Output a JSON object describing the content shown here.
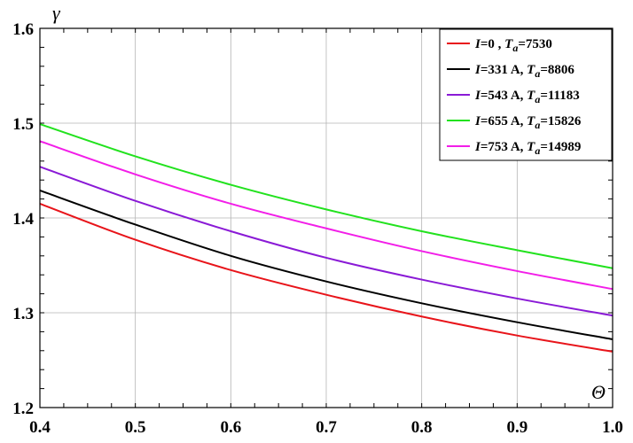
{
  "chart_data": {
    "type": "line",
    "title": "",
    "xlabel": "Θ",
    "ylabel": "γ",
    "xlim": [
      0.4,
      1.0
    ],
    "ylim": [
      1.2,
      1.6
    ],
    "grid": true,
    "legend_position": "top-right",
    "xticks": [
      "0.4",
      "0.5",
      "0.6",
      "0.7",
      "0.8",
      "0.9",
      "1.0"
    ],
    "yticks": [
      "1.2",
      "1.3",
      "1.4",
      "1.5",
      "1.6"
    ],
    "x": [
      0.4,
      0.5,
      0.6,
      0.7,
      0.8,
      0.9,
      1.0
    ],
    "series": [
      {
        "legend": {
          "I": "0 ,",
          "Ta": "7530"
        },
        "color": "#e8141a",
        "values": [
          1.415,
          1.377,
          1.345,
          1.319,
          1.296,
          1.276,
          1.259
        ]
      },
      {
        "legend": {
          "I": "331 A,",
          "Ta": "8806"
        },
        "color": "#000000",
        "values": [
          1.429,
          1.393,
          1.36,
          1.333,
          1.31,
          1.29,
          1.272
        ]
      },
      {
        "legend": {
          "I": "543 A,",
          "Ta": "11183"
        },
        "color": "#8a1ad6",
        "values": [
          1.454,
          1.418,
          1.386,
          1.358,
          1.335,
          1.315,
          1.297
        ]
      },
      {
        "legend": {
          "I": "655 A,",
          "Ta": "15826"
        },
        "color": "#22e21e",
        "values": [
          1.499,
          1.465,
          1.435,
          1.409,
          1.386,
          1.366,
          1.347
        ]
      },
      {
        "legend": {
          "I": "753 A,",
          "Ta": "14989"
        },
        "color": "#f21ee8",
        "values": [
          1.481,
          1.446,
          1.415,
          1.389,
          1.365,
          1.344,
          1.325
        ]
      }
    ]
  }
}
